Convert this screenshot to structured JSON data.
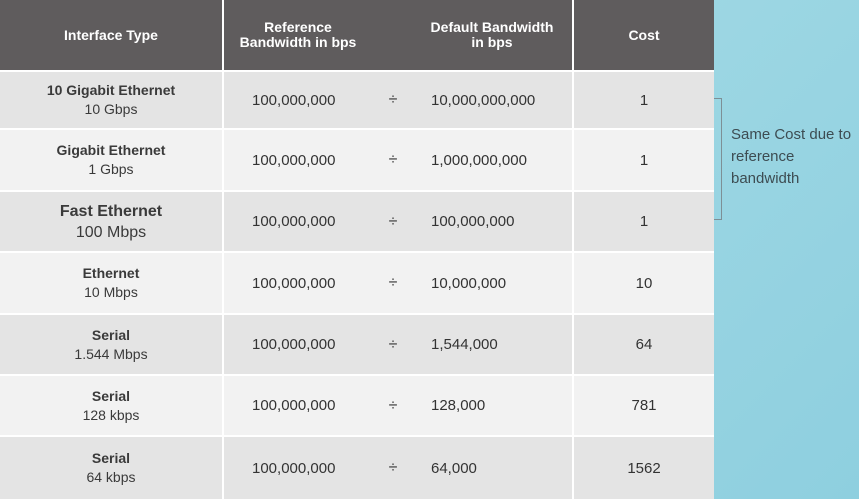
{
  "header": {
    "col_type": "Interface Type",
    "col_ref": "Reference\nBandwidth in bps",
    "col_bw": "Default Bandwidth\nin bps",
    "col_cost": "Cost"
  },
  "rows": [
    {
      "name": "10 Gigabit Ethernet",
      "speed": "10 Gbps",
      "ref": "100,000,000",
      "op": "÷",
      "bw": "10,000,000,000",
      "cost": "1"
    },
    {
      "name": "Gigabit Ethernet",
      "speed": "1 Gbps",
      "ref": "100,000,000",
      "op": "÷",
      "bw": "1,000,000,000",
      "cost": "1"
    },
    {
      "name": "Fast Ethernet",
      "speed": "100 Mbps",
      "ref": "100,000,000",
      "op": "÷",
      "bw": "100,000,000",
      "cost": "1"
    },
    {
      "name": "Ethernet",
      "speed": "10 Mbps",
      "ref": "100,000,000",
      "op": "÷",
      "bw": "10,000,000",
      "cost": "10"
    },
    {
      "name": "Serial",
      "speed": "1.544 Mbps",
      "ref": "100,000,000",
      "op": "÷",
      "bw": "1,544,000",
      "cost": "64"
    },
    {
      "name": "Serial",
      "speed": "128 kbps",
      "ref": "100,000,000",
      "op": "÷",
      "bw": "128,000",
      "cost": "781"
    },
    {
      "name": "Serial",
      "speed": "64 kbps",
      "ref": "100,000,000",
      "op": "÷",
      "bw": "64,000",
      "cost": "1562"
    }
  ],
  "note": {
    "text": "Same Cost due to reference bandwidth"
  },
  "colors": {
    "header_bg": "#5f5c5d",
    "row_light": "#f2f2f2",
    "row_dark": "#e4e4e4",
    "side_panel": "#9fd8e4"
  }
}
